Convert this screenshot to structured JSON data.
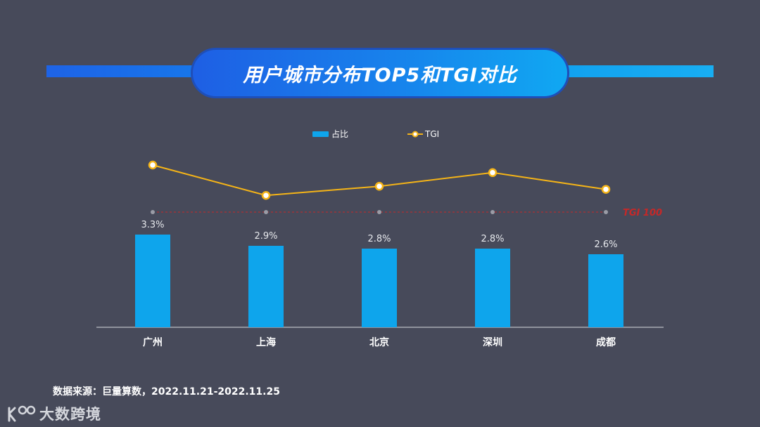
{
  "title": "用户城市分布TOP5和TGI对比",
  "legend": {
    "bar_label": "占比",
    "line_label": "TGI"
  },
  "colors": {
    "bar": "#0ea5ec",
    "line": "#f5b417",
    "ref": "#c62828",
    "background": "#474a5a"
  },
  "chart_data": {
    "type": "bar",
    "categories": [
      "广州",
      "上海",
      "北京",
      "深圳",
      "成都"
    ],
    "series": [
      {
        "name": "占比",
        "type": "bar",
        "values": [
          3.3,
          2.9,
          2.8,
          2.8,
          2.6
        ],
        "labels": [
          "3.3%",
          "2.9%",
          "2.8%",
          "2.8%",
          "2.6%"
        ]
      },
      {
        "name": "TGI",
        "type": "line",
        "values": [
          131,
          111,
          117,
          126,
          115
        ]
      }
    ],
    "reference_line": {
      "value": 100,
      "label": "TGI 100"
    },
    "y_range": [
      0,
      4
    ],
    "tgi_range": [
      40,
      150
    ],
    "grid": false,
    "legend_position": "top-center"
  },
  "source": "数据来源：巨量算数，2022.11.21-2022.11.25",
  "logo": {
    "text": "大数跨境"
  }
}
